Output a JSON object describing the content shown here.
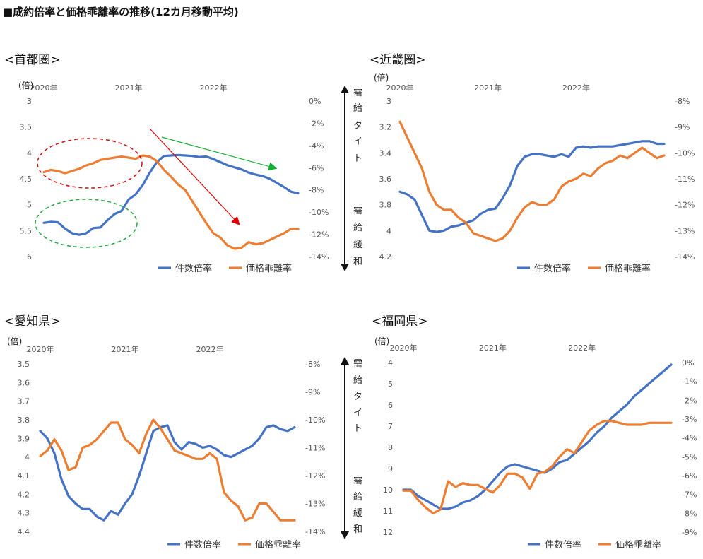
{
  "page_title": "■成約倍率と価格乖離率の推移(12カ月移動平均)",
  "supply_labels": {
    "tight": [
      "需",
      "給",
      "タ",
      "イ",
      "ト"
    ],
    "loose": [
      "需",
      "給",
      "緩",
      "和"
    ]
  },
  "colors": {
    "count_ratio": "#4472c4",
    "price_gap": "#ed7d31"
  },
  "chart_data": [
    {
      "type": "line",
      "region": "<首都圏>",
      "left_unit": "(倍)",
      "years": [
        {
          "label": "2020年",
          "x": 0
        },
        {
          "label": "2021年",
          "x": 12
        },
        {
          "label": "2022年",
          "x": 24
        }
      ],
      "left_axis": {
        "min": 3,
        "max": 6,
        "ticks": [
          "3",
          "3.5",
          "4",
          "4.5",
          "5",
          "5.5",
          "6"
        ],
        "inverted": true
      },
      "right_axis": {
        "min": -14,
        "max": 0,
        "ticks": [
          "0%",
          "-2%",
          "-4%",
          "-6%",
          "-8%",
          "-10%",
          "-12%",
          "-14%"
        ]
      },
      "series": [
        {
          "name": "件数倍率",
          "axis": "left",
          "x": [
            0,
            1,
            2,
            3,
            4,
            5,
            6,
            7,
            8,
            9,
            10,
            11,
            12,
            13,
            14,
            15,
            16,
            17,
            18,
            19,
            20,
            21,
            22,
            23,
            24,
            25,
            26,
            27,
            28,
            29,
            30,
            31,
            32,
            33,
            34,
            35,
            36
          ],
          "values": [
            5.35,
            5.33,
            5.34,
            5.46,
            5.55,
            5.58,
            5.55,
            5.45,
            5.44,
            5.3,
            5.18,
            5.12,
            4.9,
            4.8,
            4.62,
            4.38,
            4.18,
            4.06,
            4.05,
            4.04,
            4.05,
            4.06,
            4.08,
            4.07,
            4.12,
            4.18,
            4.24,
            4.28,
            4.32,
            4.38,
            4.42,
            4.45,
            4.5,
            4.58,
            4.66,
            4.75,
            4.78
          ]
        },
        {
          "name": "価格乖離率",
          "axis": "right",
          "x": [
            0,
            1,
            2,
            3,
            4,
            5,
            6,
            7,
            8,
            9,
            10,
            11,
            12,
            13,
            14,
            15,
            16,
            17,
            18,
            19,
            20,
            21,
            22,
            23,
            24,
            25,
            26,
            27,
            28,
            29,
            30,
            31,
            32,
            33,
            34,
            35,
            36
          ],
          "values": [
            -6.4,
            -6.2,
            -6.3,
            -6.5,
            -6.3,
            -6.1,
            -5.8,
            -5.6,
            -5.3,
            -5.2,
            -5.1,
            -5.0,
            -5.1,
            -5.2,
            -4.9,
            -5.0,
            -5.4,
            -6.2,
            -6.8,
            -7.5,
            -8.0,
            -9.0,
            -10.0,
            -11.0,
            -11.9,
            -12.3,
            -13.0,
            -13.3,
            -13.2,
            -12.7,
            -12.9,
            -12.8,
            -12.5,
            -12.2,
            -11.9,
            -11.5,
            -11.5
          ]
        }
      ],
      "legend": [
        "件数倍率",
        "価格乖離率"
      ]
    },
    {
      "type": "line",
      "region": "<近畿圏>",
      "left_unit": "(倍)",
      "years": [
        {
          "label": "2020年",
          "x": 0
        },
        {
          "label": "2021年",
          "x": 12
        },
        {
          "label": "2022年",
          "x": 24
        }
      ],
      "left_axis": {
        "min": 3,
        "max": 4.2,
        "ticks": [
          "3",
          "3.2",
          "3.4",
          "3.6",
          "3.8",
          "4",
          "4.2"
        ],
        "inverted": true
      },
      "right_axis": {
        "min": -14,
        "max": -8,
        "ticks": [
          "-8%",
          "-9%",
          "-10%",
          "-11%",
          "-12%",
          "-13%",
          "-14%"
        ]
      },
      "series": [
        {
          "name": "件数倍率",
          "axis": "left",
          "x": [
            0,
            1,
            2,
            3,
            4,
            5,
            6,
            7,
            8,
            9,
            10,
            11,
            12,
            13,
            14,
            15,
            16,
            17,
            18,
            19,
            20,
            21,
            22,
            23,
            24,
            25,
            26,
            27,
            28,
            29,
            30,
            31,
            32,
            33,
            34,
            35,
            36
          ],
          "values": [
            3.7,
            3.72,
            3.76,
            3.88,
            4.0,
            4.01,
            4.0,
            3.97,
            3.96,
            3.94,
            3.92,
            3.87,
            3.84,
            3.83,
            3.75,
            3.65,
            3.5,
            3.43,
            3.41,
            3.41,
            3.42,
            3.43,
            3.41,
            3.43,
            3.36,
            3.35,
            3.36,
            3.35,
            3.35,
            3.35,
            3.34,
            3.33,
            3.32,
            3.31,
            3.31,
            3.33,
            3.33
          ]
        },
        {
          "name": "価格乖離率",
          "axis": "right",
          "x": [
            0,
            1,
            2,
            3,
            4,
            5,
            6,
            7,
            8,
            9,
            10,
            11,
            12,
            13,
            14,
            15,
            16,
            17,
            18,
            19,
            20,
            21,
            22,
            23,
            24,
            25,
            26,
            27,
            28,
            29,
            30,
            31,
            32,
            33,
            34,
            35,
            36
          ],
          "values": [
            -8.8,
            -9.4,
            -10.0,
            -10.6,
            -11.5,
            -12.0,
            -12.2,
            -12.2,
            -12.5,
            -12.7,
            -13.1,
            -13.2,
            -13.3,
            -13.4,
            -13.3,
            -13.0,
            -12.5,
            -12.1,
            -11.9,
            -12.0,
            -12.0,
            -11.8,
            -11.3,
            -11.1,
            -11.0,
            -10.8,
            -10.9,
            -10.6,
            -10.4,
            -10.3,
            -10.1,
            -10.2,
            -10.0,
            -9.8,
            -10.0,
            -10.2,
            -10.1
          ]
        }
      ],
      "legend": [
        "件数倍率",
        "価格乖離率"
      ]
    },
    {
      "type": "line",
      "region": "<愛知県>",
      "left_unit": "(倍)",
      "years": [
        {
          "label": "2020年",
          "x": 0
        },
        {
          "label": "2021年",
          "x": 12
        },
        {
          "label": "2022年",
          "x": 24
        }
      ],
      "left_axis": {
        "min": 3.5,
        "max": 4.4,
        "ticks": [
          "3.5",
          "3.6",
          "3.7",
          "3.8",
          "3.9",
          "4",
          "4.1",
          "4.2",
          "4.3",
          "4.4"
        ],
        "inverted": true
      },
      "right_axis": {
        "min": -14,
        "max": -8,
        "ticks": [
          "-8%",
          "-9%",
          "-10%",
          "-11%",
          "-12%",
          "-13%",
          "-14%"
        ]
      },
      "series": [
        {
          "name": "件数倍率",
          "axis": "left",
          "x": [
            0,
            1,
            2,
            3,
            4,
            5,
            6,
            7,
            8,
            9,
            10,
            11,
            12,
            13,
            14,
            15,
            16,
            17,
            18,
            19,
            20,
            21,
            22,
            23,
            24,
            25,
            26,
            27,
            28,
            29,
            30,
            31,
            32,
            33,
            34,
            35,
            36
          ],
          "values": [
            3.86,
            3.9,
            3.98,
            4.12,
            4.21,
            4.25,
            4.28,
            4.28,
            4.32,
            4.34,
            4.29,
            4.31,
            4.25,
            4.2,
            4.1,
            3.98,
            3.86,
            3.84,
            3.83,
            3.92,
            3.96,
            3.92,
            3.93,
            3.95,
            3.94,
            3.96,
            3.99,
            4.0,
            3.98,
            3.96,
            3.94,
            3.9,
            3.84,
            3.83,
            3.85,
            3.86,
            3.84
          ]
        },
        {
          "name": "価格乖離率",
          "axis": "right",
          "x": [
            0,
            1,
            2,
            3,
            4,
            5,
            6,
            7,
            8,
            9,
            10,
            11,
            12,
            13,
            14,
            15,
            16,
            17,
            18,
            19,
            20,
            21,
            22,
            23,
            24,
            25,
            26,
            27,
            28,
            29,
            30,
            31,
            32,
            33,
            34,
            35,
            36
          ],
          "values": [
            -11.3,
            -11.1,
            -10.7,
            -11.1,
            -11.8,
            -11.7,
            -11.0,
            -10.9,
            -10.7,
            -10.4,
            -10.1,
            -10.1,
            -10.7,
            -10.9,
            -11.2,
            -10.5,
            -10.0,
            -10.3,
            -10.7,
            -11.1,
            -11.2,
            -11.3,
            -11.4,
            -11.4,
            -11.2,
            -11.4,
            -12.6,
            -12.9,
            -13.1,
            -13.6,
            -13.5,
            -13.0,
            -13.0,
            -13.3,
            -13.6,
            -13.6,
            -13.6
          ]
        }
      ],
      "legend": [
        "件数倍率",
        "価格乖離率"
      ]
    },
    {
      "type": "line",
      "region": "<福岡県>",
      "left_unit": "(倍)",
      "years": [
        {
          "label": "2020年",
          "x": 0
        },
        {
          "label": "2021年",
          "x": 12
        },
        {
          "label": "2022年",
          "x": 24
        }
      ],
      "left_axis": {
        "min": 4,
        "max": 12,
        "ticks": [
          "4",
          "5",
          "6",
          "7",
          "8",
          "9",
          "10",
          "11",
          "12"
        ],
        "inverted": true
      },
      "right_axis": {
        "min": -9,
        "max": 0,
        "ticks": [
          "0%",
          "-1%",
          "-2%",
          "-3%",
          "-4%",
          "-5%",
          "-6%",
          "-7%",
          "-8%",
          "-9%"
        ]
      },
      "series": [
        {
          "name": "件数倍率",
          "axis": "left",
          "x": [
            0,
            1,
            2,
            3,
            4,
            5,
            6,
            7,
            8,
            9,
            10,
            11,
            12,
            13,
            14,
            15,
            16,
            17,
            18,
            19,
            20,
            21,
            22,
            23,
            24,
            25,
            26,
            27,
            28,
            29,
            30,
            31,
            32,
            33,
            34,
            35,
            36
          ],
          "values": [
            10.0,
            10.0,
            10.3,
            10.5,
            10.7,
            10.9,
            10.9,
            10.8,
            10.6,
            10.5,
            10.3,
            10.0,
            9.6,
            9.2,
            8.9,
            8.8,
            8.9,
            9.0,
            9.1,
            9.2,
            9.0,
            8.7,
            8.6,
            8.3,
            8.0,
            7.7,
            7.3,
            7.0,
            6.6,
            6.3,
            6.0,
            5.6,
            5.3,
            5.0,
            4.7,
            4.4,
            4.1
          ]
        },
        {
          "name": "価格乖離率",
          "axis": "right",
          "x": [
            0,
            1,
            2,
            3,
            4,
            5,
            6,
            7,
            8,
            9,
            10,
            11,
            12,
            13,
            14,
            15,
            16,
            17,
            18,
            19,
            20,
            21,
            22,
            23,
            24,
            25,
            26,
            27,
            28,
            29,
            30,
            31,
            32,
            33,
            34,
            35,
            36
          ],
          "values": [
            -6.8,
            -6.8,
            -7.3,
            -7.7,
            -8.0,
            -7.8,
            -6.3,
            -6.6,
            -6.4,
            -6.5,
            -6.5,
            -6.7,
            -6.9,
            -6.5,
            -5.9,
            -5.9,
            -6.1,
            -6.7,
            -5.9,
            -5.8,
            -5.5,
            -5.0,
            -4.6,
            -4.8,
            -4.2,
            -3.6,
            -3.3,
            -3.1,
            -3.1,
            -3.2,
            -3.3,
            -3.3,
            -3.3,
            -3.2,
            -3.2,
            -3.2,
            -3.2
          ]
        }
      ],
      "legend": [
        "件数倍率",
        "価格乖離率"
      ]
    }
  ]
}
